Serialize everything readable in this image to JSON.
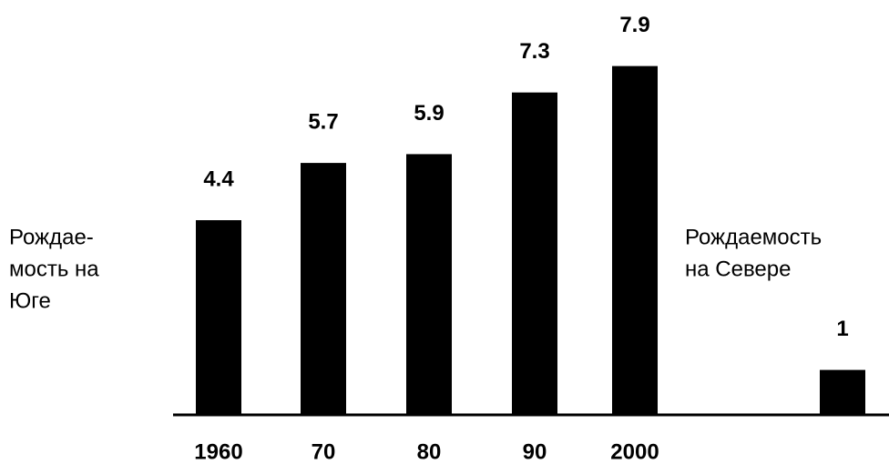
{
  "chart_data": {
    "type": "bar",
    "categories": [
      "1960",
      "70",
      "80",
      "90",
      "2000",
      null
    ],
    "values": [
      4.4,
      5.7,
      5.9,
      7.3,
      7.9,
      1
    ],
    "color": "#000000",
    "ylim": [
      0,
      9.4
    ],
    "left_label": [
      "Рождае-",
      "мость на",
      "Юге"
    ],
    "right_label": [
      "Рождаемость",
      "на Севере"
    ]
  }
}
